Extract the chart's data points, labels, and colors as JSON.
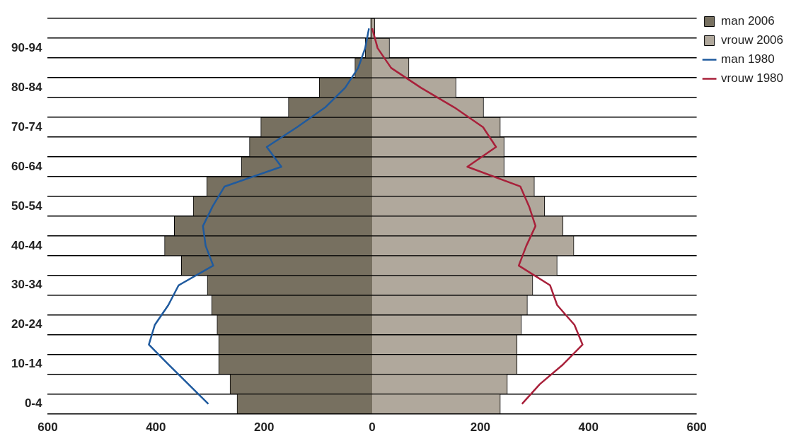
{
  "chart_data": {
    "type": "bar",
    "orientation": "horizontal",
    "categories": [
      null,
      "90-94",
      null,
      "80-84",
      null,
      "70-74",
      null,
      "60-64",
      null,
      "50-54",
      null,
      "40-44",
      null,
      "30-34",
      null,
      "20-24",
      null,
      "10-14",
      null,
      "0-4"
    ],
    "series": [
      {
        "name": "man 2006",
        "color": "#777060",
        "values": [
          -3,
          -13,
          -32,
          -98,
          -155,
          -206,
          -227,
          -242,
          -306,
          -331,
          -366,
          -384,
          -353,
          -305,
          -297,
          -287,
          -284,
          -284,
          -263,
          -250
        ]
      },
      {
        "name": "vrouw 2006",
        "color": "#b0a89c",
        "values": [
          5,
          32,
          68,
          155,
          206,
          237,
          244,
          244,
          300,
          319,
          353,
          373,
          342,
          297,
          287,
          276,
          268,
          268,
          250,
          237
        ]
      },
      {
        "name": "man 1980",
        "type": "line",
        "color": "#1f5a9e",
        "values": [
          -6,
          -13,
          -26,
          -50,
          -87,
          -139,
          -195,
          -168,
          -273,
          -295,
          -313,
          -308,
          -294,
          -358,
          -377,
          -402,
          -413,
          -377,
          -340,
          -303
        ]
      },
      {
        "name": "vrouw 1980",
        "type": "line",
        "color": "#a8203a",
        "values": [
          0,
          10,
          35,
          90,
          152,
          205,
          229,
          176,
          274,
          290,
          302,
          285,
          271,
          329,
          342,
          374,
          389,
          353,
          310,
          277
        ]
      }
    ],
    "xlim": [
      -600,
      600
    ],
    "xticks": [
      {
        "value": -600,
        "label": "600"
      },
      {
        "value": -400,
        "label": "400"
      },
      {
        "value": -200,
        "label": "200"
      },
      0,
      200,
      400,
      600
    ],
    "stacked": true,
    "grid": "y",
    "legend": "top right",
    "marker": "none",
    "line_style": "solid"
  }
}
